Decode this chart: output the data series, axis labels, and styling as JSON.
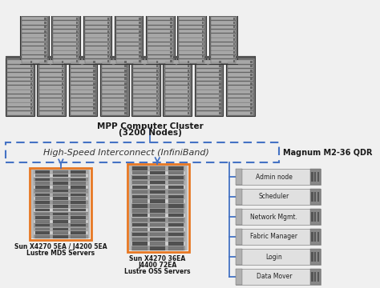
{
  "bg_color": "#f0f0f0",
  "mpp_label": "MPP Computer Cluster",
  "mpp_sublabel": "(3200 Nodes)",
  "interconnect_label": "High-Speed Interconnect (InfiniBand)",
  "switch_label": "Magnum M2-36 QDR",
  "mds_label1": "Sun X4270 5EA / J4200 5EA",
  "mds_label2": "Lustre MDS Servers",
  "oss_label1": "Sun X4270 36EA",
  "oss_label2": "J4400 72EA",
  "oss_label3": "Lustre OSS Servers",
  "nodes": [
    "Admin node",
    "Scheduler",
    "Network Mgmt.",
    "Fabric Manager",
    "Login",
    "Data Mover"
  ],
  "orange_border": "#E87722",
  "blue_line": "#4472C4",
  "rack_face": "#909090",
  "rack_edge": "#444444",
  "rack_slot_light": "#c8c8c8",
  "rack_slot_dark": "#606060"
}
